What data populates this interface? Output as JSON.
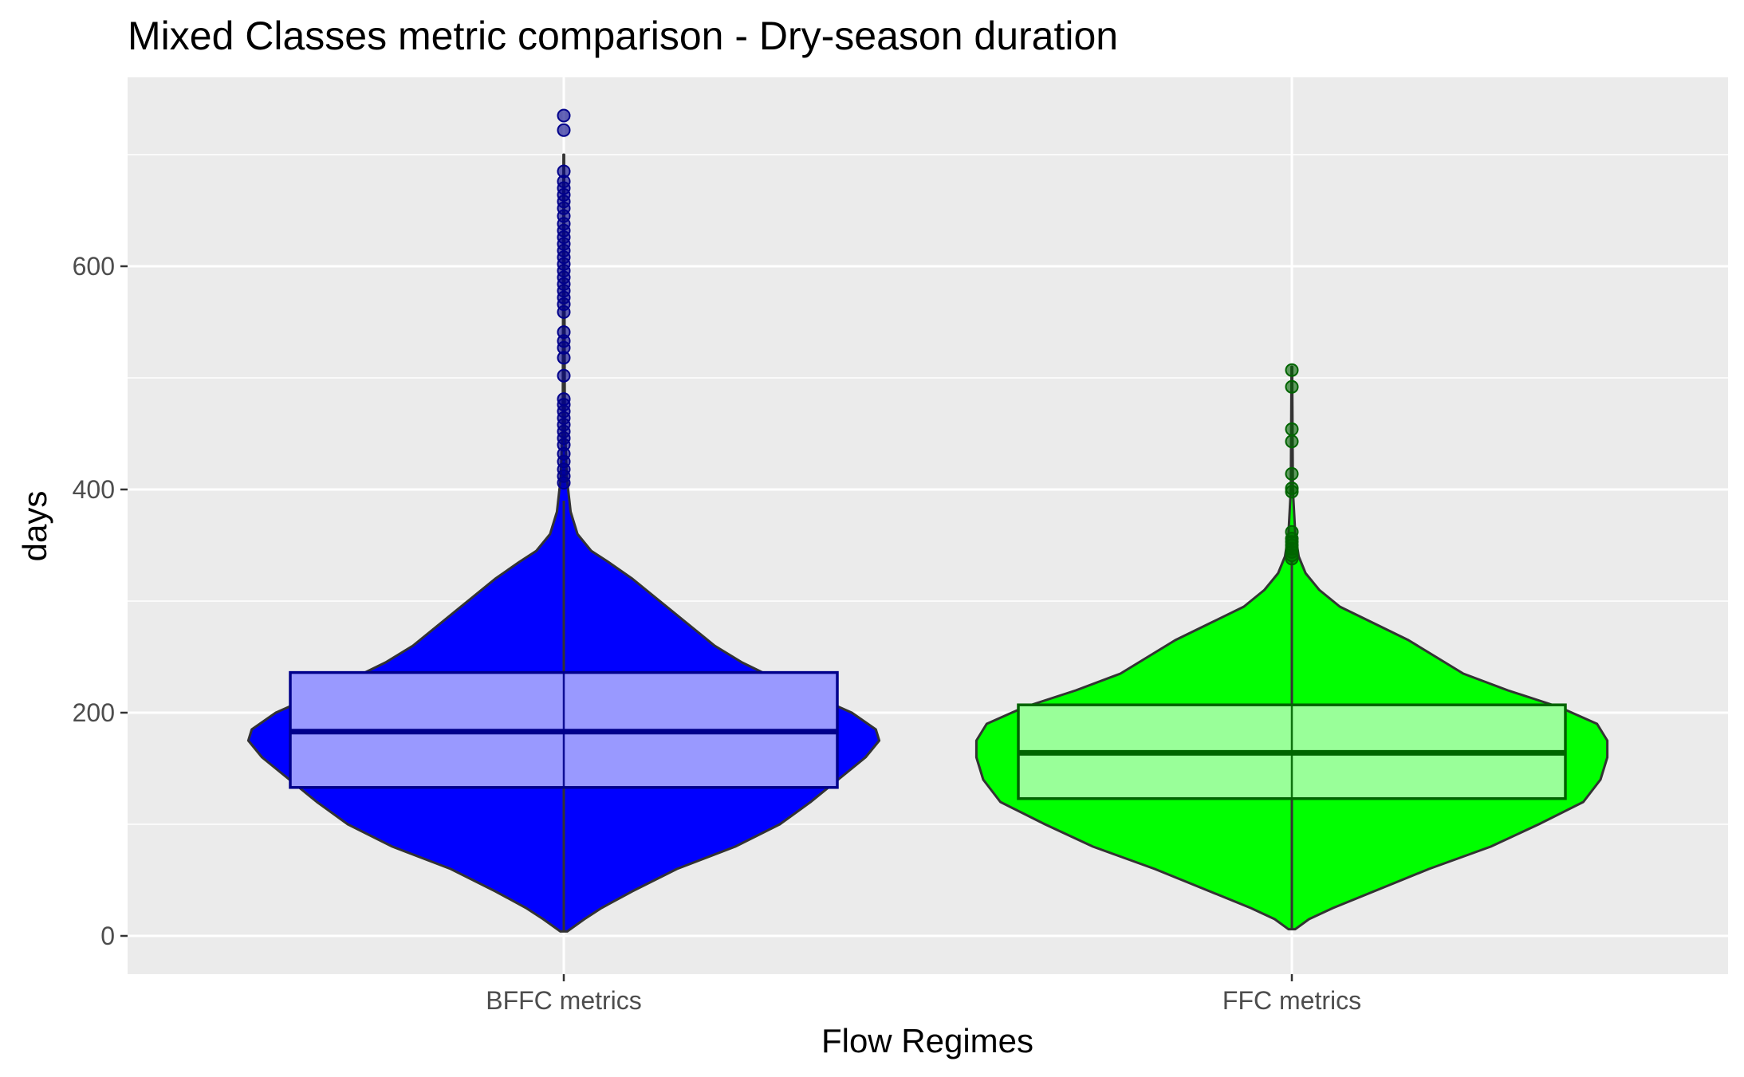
{
  "chart_data": {
    "type": "violin",
    "title": "Mixed Classes metric comparison - Dry-season duration",
    "xlabel": "Flow Regimes",
    "ylabel": "days",
    "categories": [
      "BFFC metrics",
      "FFC metrics"
    ],
    "yticks": [
      0,
      200,
      400,
      600
    ],
    "ylim": [
      -65,
      765
    ],
    "grid": true,
    "legend": "none",
    "background": "#ebebeb",
    "series": [
      {
        "category": "BFFC metrics",
        "fill_color": "#0000ff",
        "box_fill": "#9999ff",
        "box_line": "#00008b",
        "outlier_color": "#00008b",
        "box": {
          "lower_whisker": 4,
          "q1": 133,
          "median": 183,
          "q3": 236,
          "upper_whisker": 390
        },
        "density": [
          [
            4,
            0.01
          ],
          [
            15,
            0.06
          ],
          [
            25,
            0.11
          ],
          [
            40,
            0.2
          ],
          [
            60,
            0.33
          ],
          [
            80,
            0.5
          ],
          [
            100,
            0.63
          ],
          [
            120,
            0.72
          ],
          [
            140,
            0.8
          ],
          [
            160,
            0.88
          ],
          [
            175,
            0.92
          ],
          [
            185,
            0.91
          ],
          [
            200,
            0.84
          ],
          [
            215,
            0.73
          ],
          [
            230,
            0.62
          ],
          [
            245,
            0.52
          ],
          [
            260,
            0.44
          ],
          [
            280,
            0.36
          ],
          [
            300,
            0.28
          ],
          [
            320,
            0.2
          ],
          [
            335,
            0.13
          ],
          [
            345,
            0.08
          ],
          [
            360,
            0.04
          ],
          [
            380,
            0.02
          ],
          [
            410,
            0.009
          ],
          [
            460,
            0.003
          ],
          [
            700,
            0.001
          ]
        ],
        "outliers": [
          406,
          412,
          418,
          425,
          432,
          440,
          446,
          452,
          458,
          464,
          470,
          476,
          481,
          502,
          518,
          527,
          533,
          541,
          559,
          566,
          572,
          578,
          584,
          590,
          596,
          602,
          608,
          614,
          620,
          626,
          632,
          638,
          645,
          652,
          658,
          664,
          670,
          676,
          685,
          722,
          735
        ]
      },
      {
        "category": "FFC metrics",
        "fill_color": "#00ff00",
        "box_fill": "#99ff99",
        "box_line": "#006400",
        "outlier_color": "#006400",
        "box": {
          "lower_whisker": 6,
          "q1": 123,
          "median": 164,
          "q3": 207,
          "upper_whisker": 335
        },
        "density": [
          [
            6,
            0.01
          ],
          [
            15,
            0.05
          ],
          [
            25,
            0.12
          ],
          [
            40,
            0.24
          ],
          [
            60,
            0.4
          ],
          [
            80,
            0.58
          ],
          [
            100,
            0.72
          ],
          [
            120,
            0.85
          ],
          [
            140,
            0.9
          ],
          [
            160,
            0.92
          ],
          [
            175,
            0.92
          ],
          [
            190,
            0.89
          ],
          [
            205,
            0.78
          ],
          [
            220,
            0.63
          ],
          [
            235,
            0.5
          ],
          [
            250,
            0.42
          ],
          [
            265,
            0.34
          ],
          [
            280,
            0.24
          ],
          [
            295,
            0.14
          ],
          [
            310,
            0.08
          ],
          [
            325,
            0.04
          ],
          [
            340,
            0.02
          ],
          [
            360,
            0.01
          ],
          [
            400,
            0.003
          ],
          [
            510,
            0.001
          ]
        ],
        "outliers": [
          338,
          341,
          344,
          347,
          350,
          353,
          356,
          362,
          398,
          401,
          414,
          443,
          454,
          492,
          507
        ]
      }
    ]
  }
}
